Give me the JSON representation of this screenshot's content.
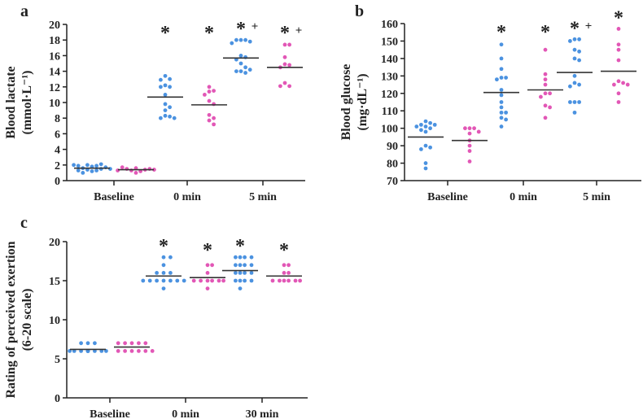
{
  "colors": {
    "group1": "#4b92e0",
    "group2": "#e257b6",
    "mean": "#333333",
    "axis": "#222222"
  },
  "chart_data": [
    {
      "type": "scatter",
      "panel": "a",
      "ylabel": [
        "Blood lactate",
        "(mmol·L⁻¹)"
      ],
      "ylim": [
        0,
        20
      ],
      "yticks": [
        0,
        2,
        4,
        6,
        8,
        10,
        12,
        14,
        16,
        18,
        20
      ],
      "categories": [
        "Baseline",
        "0 min",
        "5 min"
      ],
      "series": [
        {
          "name": "group1",
          "values": [
            [
              1.2,
              1.3,
              1.4,
              1.5,
              1.6,
              1.8,
              1.9,
              2.0,
              2.1,
              1.7,
              1.3,
              1.9,
              1.0,
              1.5,
              2.0
            ],
            [
              13.4,
              13.0,
              12.2,
              12.0,
              12.0,
              11.0,
              9.8,
              9.4,
              9.0,
              8.3,
              8.2,
              8.0,
              8.0,
              12.9
            ],
            [
              18.0,
              18.0,
              18.0,
              17.8,
              17.6,
              16.0,
              15.8,
              15.5,
              15.0,
              14.5,
              14.0,
              14.0,
              13.8,
              14.2
            ]
          ],
          "means": [
            1.6,
            10.7,
            15.7
          ],
          "annotations": [
            "",
            "*",
            "* +"
          ]
        },
        {
          "name": "group2",
          "values": [
            [
              1.0,
              1.2,
              1.3,
              1.4,
              1.5,
              1.5,
              1.6,
              1.7,
              1.4,
              1.3
            ],
            [
              12.0,
              11.5,
              11.4,
              11.0,
              10.2,
              9.8,
              8.4,
              8.0,
              7.7,
              7.2
            ],
            [
              17.4,
              17.4,
              15.8,
              14.9,
              14.8,
              14.5,
              12.5,
              12.1,
              12.1
            ]
          ],
          "means": [
            1.4,
            9.7,
            14.5
          ],
          "annotations": [
            "",
            "*",
            "* +"
          ]
        }
      ]
    },
    {
      "type": "scatter",
      "panel": "b",
      "ylabel": [
        "Blood glucose",
        "(mg·dL⁻¹)"
      ],
      "ylim": [
        70,
        160
      ],
      "yticks": [
        70,
        80,
        90,
        100,
        110,
        120,
        130,
        140,
        150,
        160
      ],
      "categories": [
        "Baseline",
        "0 min",
        "5 min"
      ],
      "series": [
        {
          "name": "group1",
          "values": [
            [
              104,
              103,
              102,
              102,
              101,
              101,
              100,
              99,
              98,
              90,
              89,
              88,
              80,
              77
            ],
            [
              148,
              140,
              134,
              129,
              129,
              128,
              122,
              119,
              115,
              112,
              109,
              109,
              106,
              105,
              101
            ],
            [
              151,
              151,
              150,
              145,
              144,
              140,
              139,
              130,
              126,
              125,
              124,
              115,
              115,
              115,
              109
            ]
          ],
          "means": [
            95,
            120.5,
            132
          ],
          "annotations": [
            "",
            "*",
            "* +"
          ]
        },
        {
          "name": "group2",
          "values": [
            [
              100,
              100,
              100,
              98,
              97,
              93,
              90,
              87,
              81
            ],
            [
              145,
              131,
              128,
              125,
              120,
              120,
              118,
              113,
              112,
              106
            ],
            [
              157,
              148,
              145,
              139,
              127,
              126,
              125,
              125,
              120,
              115
            ]
          ],
          "means": [
            93,
            122,
            132.7
          ],
          "annotations": [
            "",
            "*",
            "*"
          ]
        }
      ]
    },
    {
      "type": "scatter",
      "panel": "c",
      "ylabel": [
        "Rating of perceived exertion",
        "(6-20 scale)"
      ],
      "ylim": [
        0,
        20
      ],
      "yticks": [
        0,
        5,
        10,
        15,
        20
      ],
      "categories": [
        "Baseline",
        "0 min",
        "30 min"
      ],
      "series": [
        {
          "name": "group1",
          "values": [
            [
              6,
              6,
              6,
              6,
              6,
              6,
              6,
              6,
              6,
              6,
              6,
              6,
              6,
              7,
              7,
              7
            ],
            [
              18,
              18,
              17,
              16,
              16,
              16,
              15,
              15,
              15,
              15,
              15,
              15,
              15,
              14
            ],
            [
              18,
              18,
              18,
              18,
              17,
              17,
              17,
              17,
              16,
              16,
              16,
              16,
              15,
              15,
              15,
              15,
              14
            ]
          ],
          "means": [
            6.2,
            15.6,
            16.3
          ],
          "annotations": [
            "",
            "*",
            "*"
          ]
        },
        {
          "name": "group2",
          "values": [
            [
              6,
              6,
              6,
              6,
              6,
              6,
              7,
              7,
              7,
              7,
              7
            ],
            [
              17,
              17,
              16,
              15,
              15,
              15,
              15,
              15,
              15,
              14
            ],
            [
              17,
              17,
              16,
              16,
              15,
              15,
              15,
              15,
              15,
              15
            ]
          ],
          "means": [
            6.5,
            15.4,
            15.6
          ],
          "annotations": [
            "",
            "*",
            "*"
          ]
        }
      ]
    }
  ]
}
